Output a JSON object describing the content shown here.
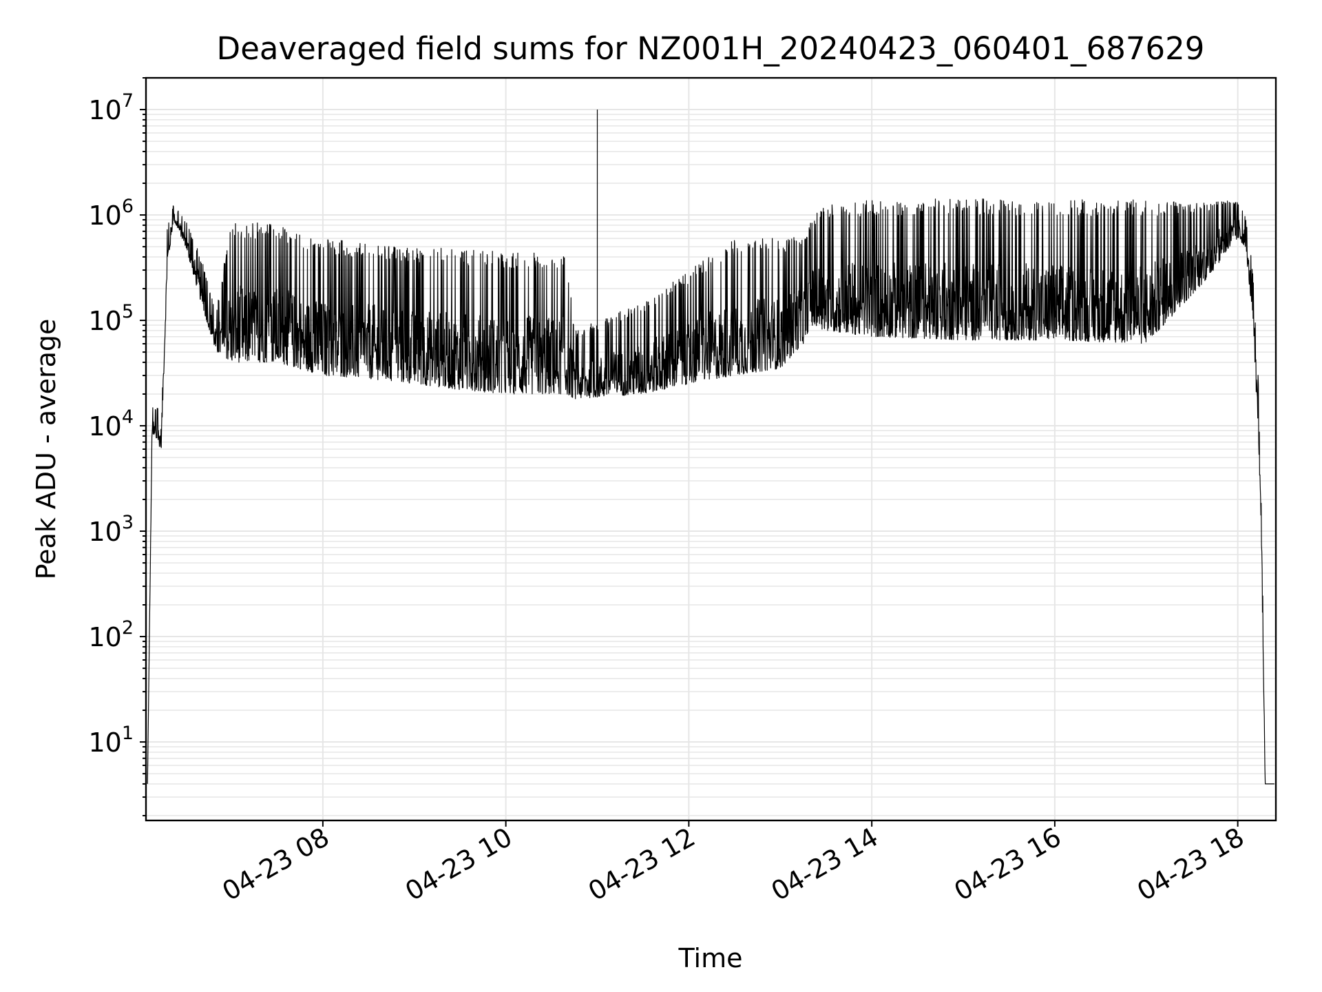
{
  "chart_data": {
    "type": "line",
    "title": "Deaveraged field sums for NZ001H_20240423_060401_687629",
    "xlabel": "Time",
    "ylabel": "Peak ADU - average",
    "xscale": "time",
    "yscale": "log",
    "xlim": [
      "2024-04-23 06:04",
      "2024-04-23 18:25"
    ],
    "ylim": [
      1.8,
      20000000
    ],
    "grid": true,
    "legend": "none",
    "line_color": "#000000",
    "x_ticks": [
      {
        "value": "2024-04-23 08:00",
        "label": "04-23 08"
      },
      {
        "value": "2024-04-23 10:00",
        "label": "04-23 10"
      },
      {
        "value": "2024-04-23 12:00",
        "label": "04-23 12"
      },
      {
        "value": "2024-04-23 14:00",
        "label": "04-23 14"
      },
      {
        "value": "2024-04-23 16:00",
        "label": "04-23 16"
      },
      {
        "value": "2024-04-23 18:00",
        "label": "04-23 18"
      }
    ],
    "y_ticks": [
      {
        "value": 10,
        "base": "10",
        "exp": "1"
      },
      {
        "value": 100,
        "base": "10",
        "exp": "2"
      },
      {
        "value": 1000,
        "base": "10",
        "exp": "3"
      },
      {
        "value": 10000,
        "base": "10",
        "exp": "4"
      },
      {
        "value": 100000,
        "base": "10",
        "exp": "5"
      },
      {
        "value": 1000000,
        "base": "10",
        "exp": "6"
      },
      {
        "value": 10000000,
        "base": "10",
        "exp": "7"
      }
    ],
    "series": [
      {
        "envelope": [
          {
            "x": "2024-04-23 06:05",
            "low": 4,
            "high": 4
          },
          {
            "x": "2024-04-23 06:08",
            "low": 8000,
            "high": 15000
          },
          {
            "x": "2024-04-23 06:14",
            "low": 6000,
            "high": 15000
          },
          {
            "x": "2024-04-23 06:18",
            "low": 300000,
            "high": 800000
          },
          {
            "x": "2024-04-23 06:22",
            "low": 900000,
            "high": 1250000
          },
          {
            "x": "2024-04-23 06:30",
            "low": 500000,
            "high": 900000
          },
          {
            "x": "2024-04-23 06:40",
            "low": 150000,
            "high": 400000
          },
          {
            "x": "2024-04-23 06:50",
            "low": 50000,
            "high": 120000
          },
          {
            "x": "2024-04-23 07:00",
            "low": 40000,
            "high": 900000
          },
          {
            "x": "2024-04-23 07:30",
            "low": 40000,
            "high": 800000
          },
          {
            "x": "2024-04-23 08:00",
            "low": 30000,
            "high": 600000
          },
          {
            "x": "2024-04-23 08:30",
            "low": 28000,
            "high": 550000
          },
          {
            "x": "2024-04-23 09:00",
            "low": 25000,
            "high": 500000
          },
          {
            "x": "2024-04-23 09:30",
            "low": 22000,
            "high": 480000
          },
          {
            "x": "2024-04-23 10:00",
            "low": 20000,
            "high": 450000
          },
          {
            "x": "2024-04-23 10:40",
            "low": 20000,
            "high": 450000
          },
          {
            "x": "2024-04-23 10:45",
            "low": 18000,
            "high": 80000
          },
          {
            "x": "2024-04-23 11:30",
            "low": 20000,
            "high": 150000
          },
          {
            "x": "2024-04-23 12:00",
            "low": 25000,
            "high": 300000
          },
          {
            "x": "2024-04-23 12:30",
            "low": 30000,
            "high": 600000
          },
          {
            "x": "2024-04-23 13:00",
            "low": 35000,
            "high": 600000
          },
          {
            "x": "2024-04-23 13:15",
            "low": 60000,
            "high": 700000
          },
          {
            "x": "2024-04-23 13:20",
            "low": 90000,
            "high": 900000
          },
          {
            "x": "2024-04-23 13:30",
            "low": 80000,
            "high": 1300000
          },
          {
            "x": "2024-04-23 14:00",
            "low": 70000,
            "high": 1400000
          },
          {
            "x": "2024-04-23 15:00",
            "low": 65000,
            "high": 1450000
          },
          {
            "x": "2024-04-23 16:00",
            "low": 65000,
            "high": 1400000
          },
          {
            "x": "2024-04-23 17:00",
            "low": 60000,
            "high": 1400000
          },
          {
            "x": "2024-04-23 17:40",
            "low": 250000,
            "high": 1300000
          },
          {
            "x": "2024-04-23 18:00",
            "low": 600000,
            "high": 1400000
          },
          {
            "x": "2024-04-23 18:05",
            "low": 500000,
            "high": 1000000
          },
          {
            "x": "2024-04-23 18:10",
            "low": 100000,
            "high": 300000
          },
          {
            "x": "2024-04-23 18:15",
            "low": 2000,
            "high": 10000
          },
          {
            "x": "2024-04-23 18:18",
            "low": 4,
            "high": 4
          },
          {
            "x": "2024-04-23 18:24",
            "low": 4,
            "high": 4
          }
        ],
        "spikes": [
          {
            "x": "2024-04-23 11:00",
            "y": 10000000
          }
        ]
      }
    ]
  }
}
